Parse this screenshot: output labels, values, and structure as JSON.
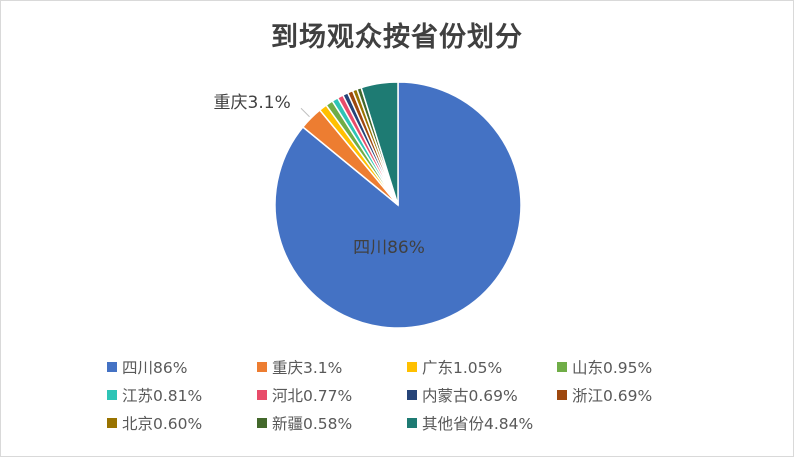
{
  "chart_data": {
    "type": "pie",
    "title": "到场观众按省份划分",
    "slices": [
      {
        "label": "四川",
        "value": 86,
        "display": "86%",
        "color": "#4472C4"
      },
      {
        "label": "重庆",
        "value": 3.1,
        "display": "3.1%",
        "color": "#ED7D31"
      },
      {
        "label": "广东",
        "value": 1.05,
        "display": "1.05%",
        "color": "#FFC000"
      },
      {
        "label": "山东",
        "value": 0.95,
        "display": "0.95%",
        "color": "#70AD47"
      },
      {
        "label": "江苏",
        "value": 0.81,
        "display": "0.81%",
        "color": "#2EC4B6"
      },
      {
        "label": "河北",
        "value": 0.77,
        "display": "0.77%",
        "color": "#E84C6A"
      },
      {
        "label": "内蒙古",
        "value": 0.69,
        "display": "0.69%",
        "color": "#264478"
      },
      {
        "label": "浙江",
        "value": 0.69,
        "display": "0.69%",
        "color": "#9E480E"
      },
      {
        "label": "北京",
        "value": 0.6,
        "display": "0.60%",
        "color": "#997300"
      },
      {
        "label": "新疆",
        "value": 0.58,
        "display": "0.58%",
        "color": "#43682B"
      },
      {
        "label": "其他省份",
        "value": 4.84,
        "display": "4.84%",
        "color": "#1E7B73"
      }
    ],
    "data_labels": [
      {
        "slice": 0,
        "text": "四川86%"
      },
      {
        "slice": 1,
        "text": "重庆3.1%"
      }
    ],
    "legend_position": "bottom"
  }
}
